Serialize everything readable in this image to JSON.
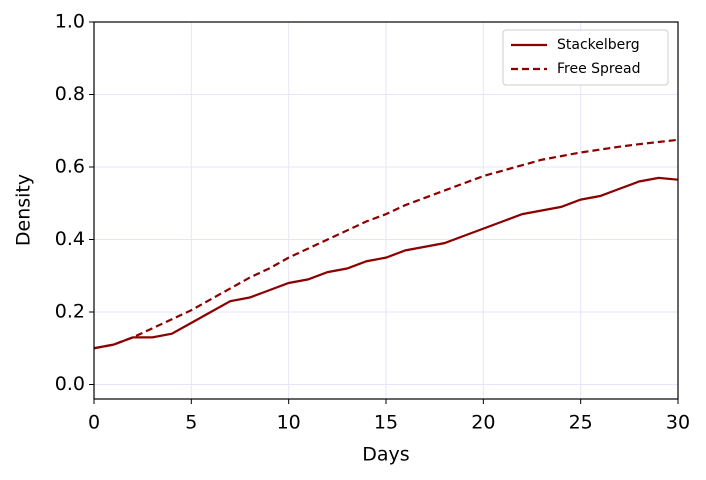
{
  "chart_data": {
    "type": "line",
    "xlabel": "Days",
    "ylabel": "Density",
    "x": [
      0,
      1,
      2,
      3,
      4,
      5,
      6,
      7,
      8,
      9,
      10,
      11,
      12,
      13,
      14,
      15,
      16,
      17,
      18,
      19,
      20,
      21,
      22,
      23,
      24,
      25,
      26,
      27,
      28,
      29,
      30
    ],
    "series": [
      {
        "name": "Stackelberg",
        "color": "#8b0000",
        "linestyle": "solid",
        "values": [
          0.1,
          0.11,
          0.13,
          0.13,
          0.14,
          0.17,
          0.2,
          0.23,
          0.24,
          0.26,
          0.28,
          0.29,
          0.31,
          0.32,
          0.34,
          0.35,
          0.37,
          0.38,
          0.39,
          0.41,
          0.43,
          0.45,
          0.47,
          0.48,
          0.49,
          0.51,
          0.52,
          0.54,
          0.56,
          0.57,
          0.565
        ]
      },
      {
        "name": "Free Spread",
        "color": "#8b0000",
        "linestyle": "dashed",
        "values": [
          0.1,
          0.11,
          0.13,
          0.155,
          0.18,
          0.205,
          0.235,
          0.265,
          0.295,
          0.32,
          0.35,
          0.375,
          0.4,
          0.425,
          0.45,
          0.47,
          0.495,
          0.515,
          0.535,
          0.555,
          0.575,
          0.59,
          0.605,
          0.62,
          0.63,
          0.64,
          0.648,
          0.656,
          0.663,
          0.669,
          0.675
        ]
      }
    ],
    "xlim": [
      0,
      30
    ],
    "xticks": [
      0,
      5,
      10,
      15,
      20,
      25,
      30
    ],
    "ylim": [
      -0.04,
      1.0
    ],
    "yticks": [
      {
        "value": 0,
        "label": "0.0"
      },
      0.2,
      0.4,
      0.6,
      0.8,
      {
        "value": 1,
        "label": "1.0"
      }
    ],
    "grid": true,
    "grid_color": "#e6e6fa",
    "legend": "upper-right"
  }
}
